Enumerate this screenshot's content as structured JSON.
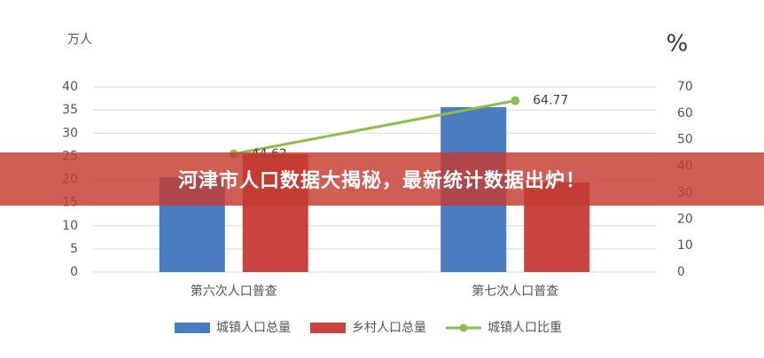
{
  "chart_data": {
    "type": "bar",
    "y_label": "万人",
    "y2_label": "%",
    "categories": [
      "第六次人口普查",
      "第七次人口普查"
    ],
    "series": [
      {
        "name": "城镇人口总量",
        "color": "#4a7dbf",
        "values": [
          20.5,
          35.6
        ]
      },
      {
        "name": "乡村人口总量",
        "color": "#c9443f",
        "values": [
          25.5,
          19.4
        ]
      },
      {
        "name": "城镇人口比重",
        "color": "#8fbb4f",
        "type": "line",
        "axis": "y2",
        "values": [
          44.62,
          64.77
        ]
      }
    ],
    "ylim": [
      0,
      40
    ],
    "yticks": [
      0,
      5,
      10,
      15,
      20,
      25,
      30,
      35,
      40
    ],
    "y2lim": [
      0,
      70
    ],
    "y2ticks": [
      0,
      10,
      20,
      30,
      40,
      50,
      60,
      70
    ],
    "grid": true,
    "legend": "bottom"
  },
  "banner": {
    "text": "河津市人口数据大揭秘，最新统计数据出炉！"
  }
}
